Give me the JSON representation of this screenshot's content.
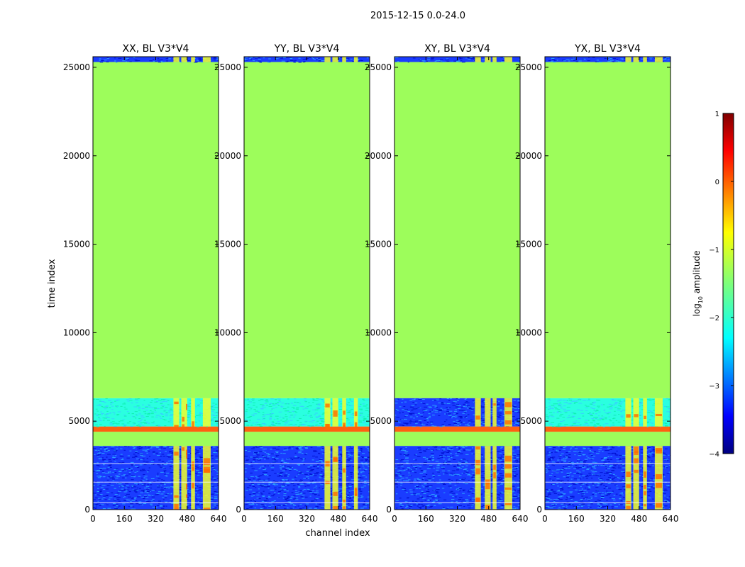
{
  "chart_data": {
    "type": "heatmap",
    "suptitle": "2015-12-15 0.0-24.0",
    "xlabel": "channel index",
    "ylabel": "time index",
    "x_ticks": [
      0,
      160,
      320,
      480,
      640
    ],
    "y_ticks": [
      0,
      5000,
      10000,
      15000,
      20000,
      25000
    ],
    "xlim": [
      0,
      640
    ],
    "ylim": [
      0,
      25600
    ],
    "colorbar": {
      "label": "log₁₀ amplitude",
      "label_main": "log",
      "label_sub": "10",
      "label_rest": " amplitude",
      "ticks": [
        1,
        0,
        -1,
        -2,
        -3,
        -4
      ],
      "tick_labels": [
        "1",
        "0",
        "−1",
        "−2",
        "−3",
        "−4"
      ],
      "range": [
        -4,
        1
      ],
      "colormap": "jet"
    },
    "panels": [
      {
        "title": "XX, BL V3*V4",
        "regions": [
          {
            "y": [
              0,
              3600
            ],
            "level": "noise-low",
            "value": -3.0
          },
          {
            "y": [
              3600,
              4400
            ],
            "level": "flat",
            "value": -1.3
          },
          {
            "y": [
              4400,
              4700
            ],
            "level": "flag",
            "value": 0.1
          },
          {
            "y": [
              4700,
              6300
            ],
            "level": "noise-mid",
            "value": -2.0
          },
          {
            "y": [
              6300,
              25300
            ],
            "level": "flat",
            "value": -1.3
          },
          {
            "y": [
              25300,
              25600
            ],
            "level": "noise-low",
            "value": -3.0
          }
        ],
        "bright_channels": [
          [
            410,
            440
          ],
          [
            450,
            470
          ],
          [
            470,
            480
          ],
          [
            500,
            520
          ],
          [
            560,
            600
          ]
        ]
      },
      {
        "title": "YY, BL V3*V4",
        "regions": [
          {
            "y": [
              0,
              3600
            ],
            "level": "noise-low",
            "value": -3.0
          },
          {
            "y": [
              3600,
              4400
            ],
            "level": "flat",
            "value": -1.3
          },
          {
            "y": [
              4400,
              4700
            ],
            "level": "flag",
            "value": 0.1
          },
          {
            "y": [
              4700,
              6300
            ],
            "level": "noise-mid",
            "value": -2.0
          },
          {
            "y": [
              6300,
              25300
            ],
            "level": "flat",
            "value": -1.3
          },
          {
            "y": [
              25300,
              25600
            ],
            "level": "noise-low",
            "value": -3.0
          }
        ],
        "bright_channels": [
          [
            410,
            440
          ],
          [
            450,
            480
          ],
          [
            500,
            520
          ],
          [
            560,
            580
          ]
        ]
      },
      {
        "title": "XY, BL V3*V4",
        "regions": [
          {
            "y": [
              0,
              3600
            ],
            "level": "noise-low",
            "value": -3.0
          },
          {
            "y": [
              3600,
              4400
            ],
            "level": "flat",
            "value": -1.3
          },
          {
            "y": [
              4400,
              4700
            ],
            "level": "flag",
            "value": 0.1
          },
          {
            "y": [
              4700,
              6300
            ],
            "level": "noise-low",
            "value": -2.6
          },
          {
            "y": [
              6300,
              25300
            ],
            "level": "flat",
            "value": -1.3
          },
          {
            "y": [
              25300,
              25600
            ],
            "level": "noise-low",
            "value": -3.0
          }
        ],
        "bright_channels": [
          [
            410,
            440
          ],
          [
            460,
            490
          ],
          [
            500,
            520
          ],
          [
            560,
            600
          ]
        ]
      },
      {
        "title": "YX, BL V3*V4",
        "regions": [
          {
            "y": [
              0,
              3600
            ],
            "level": "noise-low",
            "value": -3.0
          },
          {
            "y": [
              3600,
              4400
            ],
            "level": "flat",
            "value": -1.3
          },
          {
            "y": [
              4400,
              4700
            ],
            "level": "flag",
            "value": 0.1
          },
          {
            "y": [
              4700,
              6300
            ],
            "level": "noise-mid",
            "value": -2.2
          },
          {
            "y": [
              6300,
              25300
            ],
            "level": "flat",
            "value": -1.3
          },
          {
            "y": [
              25300,
              25600
            ],
            "level": "noise-low",
            "value": -3.0
          }
        ],
        "bright_channels": [
          [
            410,
            440
          ],
          [
            450,
            480
          ],
          [
            500,
            520
          ],
          [
            560,
            600
          ]
        ]
      }
    ],
    "colors": {
      "flat": "#9dfd5b",
      "flag": "#ff6010",
      "noise-low": "#1a3cff",
      "noise-mid": "#2affe0",
      "bright": "#f5ff2a",
      "hot": "#ff6a00",
      "stripe": "#ffffff"
    }
  }
}
